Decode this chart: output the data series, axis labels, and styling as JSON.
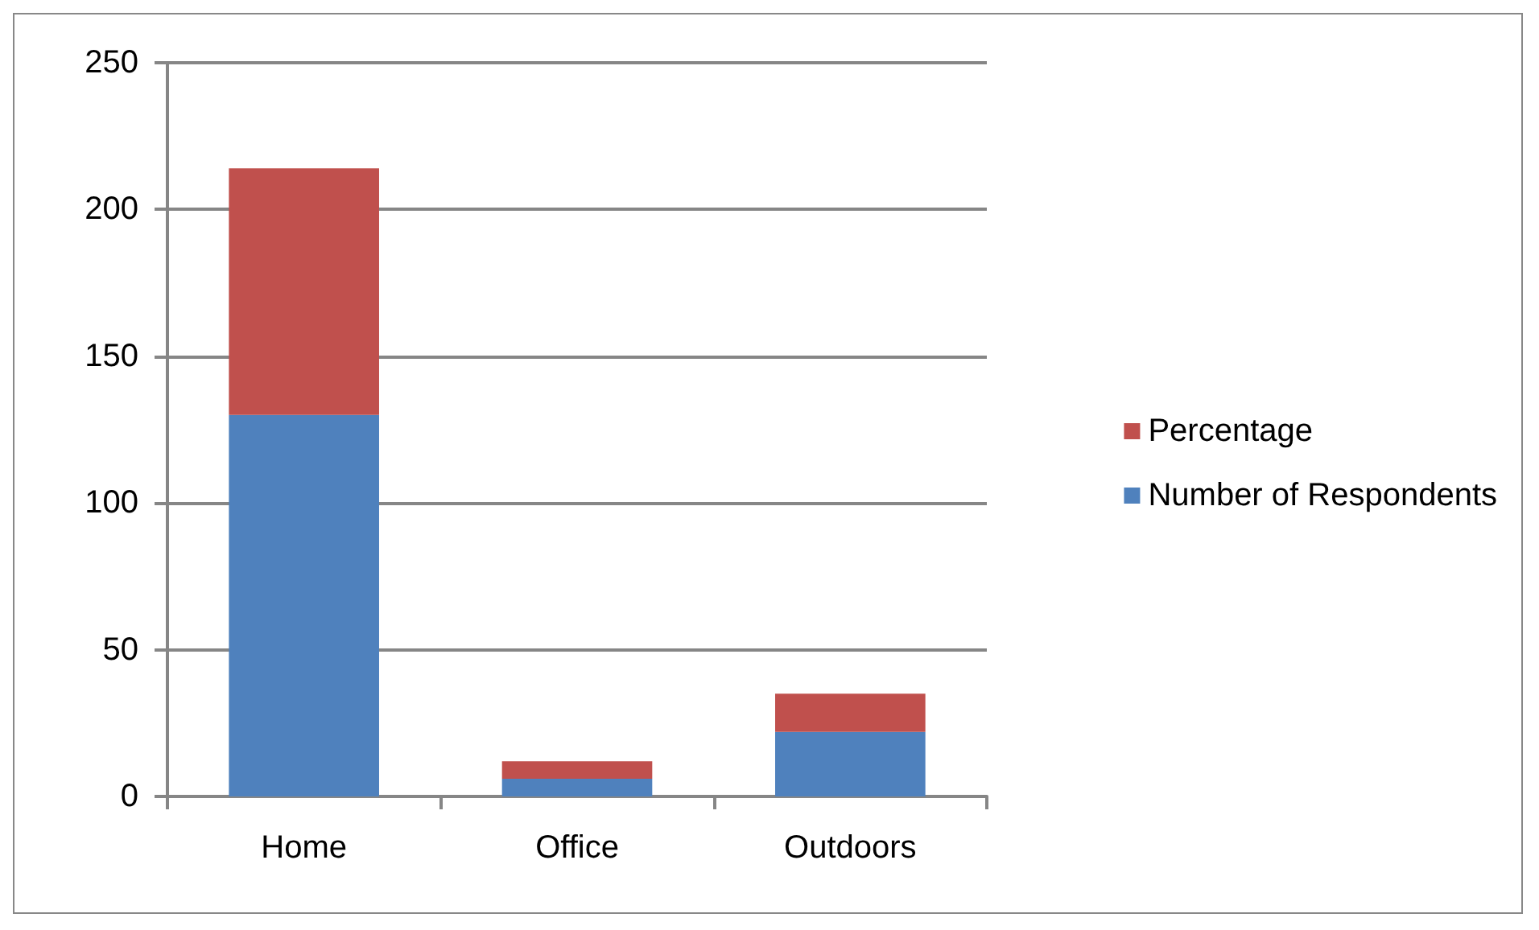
{
  "chart_data": {
    "type": "bar",
    "stacked": true,
    "categories": [
      "Home",
      "Office",
      "Outdoors"
    ],
    "series": [
      {
        "name": "Number of Respondents",
        "color": "#4f81bd",
        "values": [
          130,
          6,
          22
        ]
      },
      {
        "name": "Percentage",
        "color": "#c0504d",
        "values": [
          84,
          6,
          13
        ]
      }
    ],
    "ylim": [
      0,
      250
    ],
    "yticks": [
      0,
      50,
      100,
      150,
      200,
      250
    ],
    "grid": "y",
    "legend": "right"
  }
}
